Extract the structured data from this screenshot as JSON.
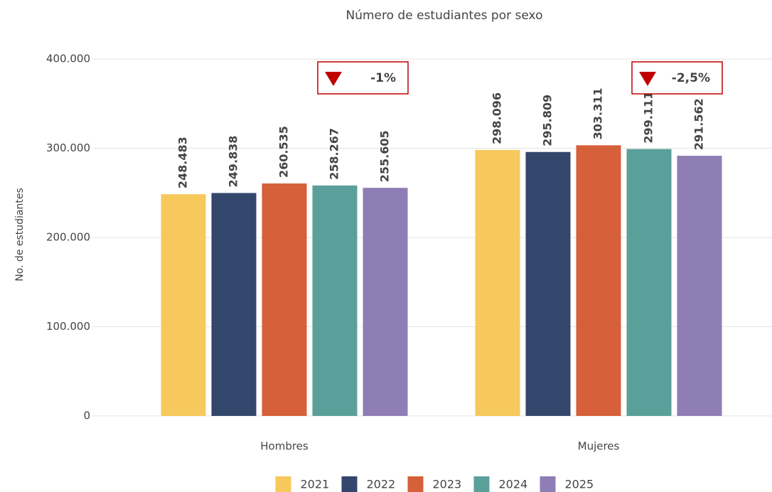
{
  "chart_data": {
    "type": "bar",
    "title": "Número de estudiantes por sexo",
    "y_label": "No. de estudiantes",
    "categories": [
      "Hombres",
      "Mujeres"
    ],
    "series": [
      {
        "name": "2021",
        "color": "#f7c95c",
        "values": [
          248483,
          298096
        ],
        "value_labels": [
          "248.483",
          "298.096"
        ]
      },
      {
        "name": "2022",
        "color": "#33466b",
        "values": [
          249838,
          295809
        ],
        "value_labels": [
          "249.838",
          "295.809"
        ]
      },
      {
        "name": "2023",
        "color": "#d5603a",
        "values": [
          260535,
          303311
        ],
        "value_labels": [
          "260.535",
          "303.311"
        ]
      },
      {
        "name": "2024",
        "color": "#5b9f9a",
        "values": [
          258267,
          299111
        ],
        "value_labels": [
          "258.267",
          "299.111"
        ]
      },
      {
        "name": "2025",
        "color": "#8f7db5",
        "values": [
          255605,
          291562
        ],
        "value_labels": [
          "255.605",
          "291.562"
        ]
      }
    ],
    "annotations": [
      "-1%",
      "-2,5%"
    ],
    "annotation_color": "#c00000",
    "ylim": [
      0,
      400000
    ],
    "yticks": [
      0,
      {
        "value": 100000,
        "label": "100.000"
      },
      {
        "value": 200000,
        "label": "200.000"
      },
      {
        "value": 300000,
        "label": "300.000"
      },
      {
        "value": 400000,
        "label": "400.000"
      }
    ],
    "grid": true,
    "legend": "bottom"
  }
}
